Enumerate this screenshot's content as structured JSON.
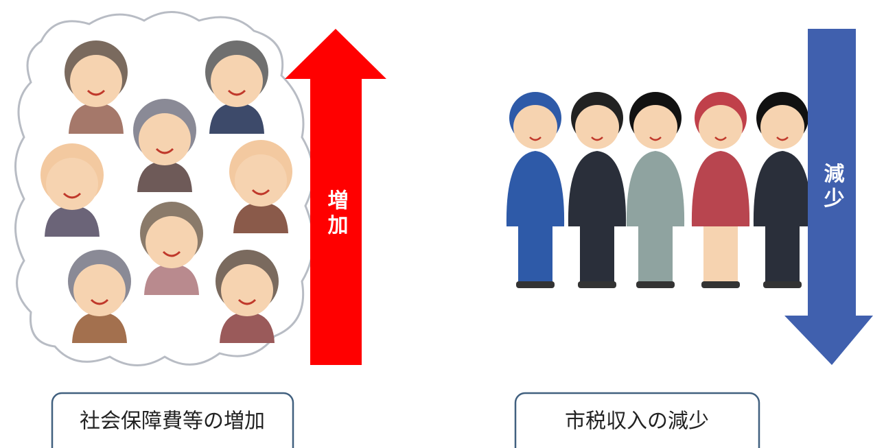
{
  "increase_arrow": {
    "label": "増加"
  },
  "decrease_arrow": {
    "label": "減少"
  },
  "captions": [
    "社会保障費等の増加",
    "市税収入の減少"
  ]
}
